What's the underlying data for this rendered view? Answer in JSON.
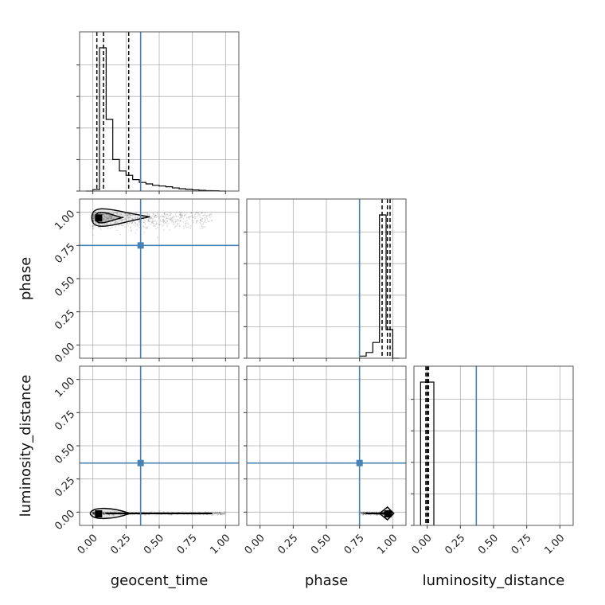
{
  "chart_data": {
    "type": "corner",
    "parameters": [
      "geocent_time",
      "phase",
      "luminosity_distance"
    ],
    "range": [
      -0.1,
      1.1
    ],
    "tick_values": [
      0.0,
      0.25,
      0.5,
      0.75,
      1.0
    ],
    "tick_labels": [
      "0.00",
      "0.25",
      "0.50",
      "0.75",
      "1.00"
    ],
    "grid": true,
    "colors": {
      "truth": "#4682b4",
      "hist": "#000000",
      "samples": "#000000",
      "grid": "#b0b0b0"
    },
    "truths": {
      "geocent_time": 0.36,
      "phase": 0.75,
      "luminosity_distance": 0.37
    },
    "histograms": {
      "geocent_time": {
        "bin_edges": [
          -0.05,
          0.0,
          0.05,
          0.1,
          0.15,
          0.2,
          0.25,
          0.3,
          0.35,
          0.4,
          0.45,
          0.5,
          0.55,
          0.6,
          0.65,
          0.7,
          0.75,
          0.8,
          0.85,
          0.9,
          0.95,
          1.0
        ],
        "counts": [
          0.0,
          0.01,
          1.0,
          0.5,
          0.22,
          0.14,
          0.11,
          0.08,
          0.06,
          0.05,
          0.04,
          0.035,
          0.03,
          0.022,
          0.016,
          0.012,
          0.008,
          0.005,
          0.003,
          0.002,
          0.0
        ],
        "quantiles": [
          0.03,
          0.08,
          0.27
        ]
      },
      "phase": {
        "bin_edges": [
          0.75,
          0.8,
          0.85,
          0.9,
          0.95,
          1.0,
          1.05
        ],
        "counts": [
          0.015,
          0.04,
          0.11,
          1.0,
          0.2,
          0.0
        ],
        "quantiles": [
          0.92,
          0.96,
          0.98
        ]
      },
      "luminosity_distance": {
        "bin_edges": [
          -0.05,
          0.0,
          0.05
        ],
        "counts": [
          1.0,
          1.0
        ],
        "quantiles": [
          -0.01,
          0.0,
          0.01
        ]
      }
    },
    "pairs": [
      {
        "x": "geocent_time",
        "y": "phase",
        "peak": [
          0.04,
          0.96
        ],
        "scatter_extent": {
          "x": [
            0.0,
            0.9
          ],
          "y": [
            0.78,
            1.0
          ]
        }
      },
      {
        "x": "geocent_time",
        "y": "luminosity_distance",
        "peak": [
          0.04,
          -0.01
        ],
        "scatter_extent": {
          "x": [
            0.0,
            1.0
          ],
          "y": [
            -0.02,
            0.02
          ]
        }
      },
      {
        "x": "phase",
        "y": "luminosity_distance",
        "peak": [
          0.96,
          -0.01
        ],
        "scatter_extent": {
          "x": [
            0.75,
            0.99
          ],
          "y": [
            -0.02,
            0.02
          ]
        }
      }
    ]
  }
}
